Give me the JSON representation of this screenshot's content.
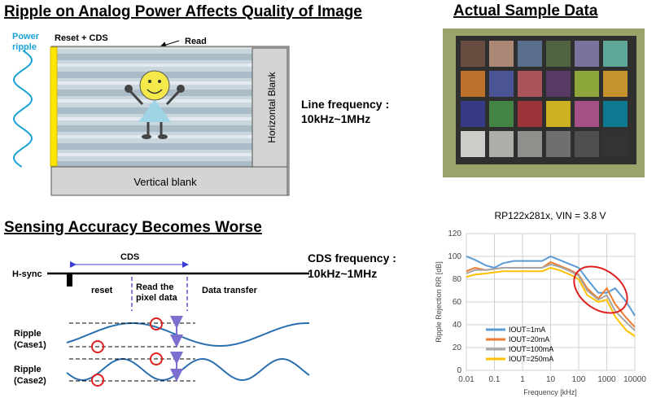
{
  "top_left": {
    "title": "Ripple on Analog Power Affects Quality of Image",
    "power_ripple": [
      "Power",
      "ripple"
    ],
    "reset_cds": "Reset + CDS",
    "read": "Read",
    "horizontal_blank": "Horizontal Blank",
    "vertical_blank": "Vertical blank",
    "line_frequency": [
      "Line frequency :",
      "10kHz~1MHz"
    ]
  },
  "top_right": {
    "title": "Actual Sample Data"
  },
  "bottom_left": {
    "title": "Sensing Accuracy Becomes Worse",
    "h_sync": "H-sync",
    "cds": "CDS",
    "reset": "reset",
    "read_pixel": [
      "Read the",
      "pixel data"
    ],
    "data_transfer": "Data transfer",
    "cds_frequency": [
      "CDS frequency :",
      "10kHz~1MHz"
    ],
    "ripple_case1": [
      "Ripple",
      "(Case1)"
    ],
    "ripple_case2": [
      "Ripple",
      "(Case2)"
    ]
  },
  "chart_data": {
    "type": "line",
    "title": "RP122x281x, VIN = 3.8 V",
    "x_label": "Frequency [kHz]",
    "y_label": "Ripple Rejection RR [dB]",
    "x": [
      0.01,
      0.02,
      0.05,
      0.1,
      0.2,
      0.5,
      1,
      2,
      5,
      10,
      20,
      50,
      100,
      200,
      500,
      1000,
      2000,
      5000,
      10000
    ],
    "series": [
      {
        "name": "IOUT=1mA",
        "color": "#5b9bd5",
        "values": [
          100,
          97,
          92,
          90,
          94,
          96,
          96,
          96,
          96,
          100,
          97,
          93,
          90,
          80,
          68,
          68,
          72,
          60,
          48
        ]
      },
      {
        "name": "IOUT=20mA",
        "color": "#ed7d31",
        "values": [
          87,
          90,
          88,
          89,
          90,
          90,
          90,
          90,
          90,
          95,
          92,
          88,
          84,
          72,
          63,
          72,
          58,
          46,
          38
        ]
      },
      {
        "name": "IOUT=100mA",
        "color": "#a5a5a5",
        "values": [
          85,
          88,
          88,
          89,
          90,
          90,
          90,
          90,
          90,
          93,
          91,
          87,
          83,
          70,
          62,
          66,
          52,
          42,
          35
        ]
      },
      {
        "name": "IOUT=250mA",
        "color": "#ffc000",
        "values": [
          82,
          84,
          85,
          86,
          87,
          87,
          87,
          87,
          87,
          90,
          88,
          84,
          80,
          66,
          60,
          62,
          47,
          35,
          30
        ]
      }
    ],
    "xscale": "log",
    "xlim": [
      0.01,
      10000
    ],
    "xticks": [
      0.01,
      0.1,
      1,
      10,
      100,
      1000,
      10000
    ],
    "ylim": [
      0,
      120
    ],
    "yticks": [
      0,
      20,
      40,
      60,
      80,
      100,
      120
    ],
    "grid": true,
    "legend": "lower left"
  }
}
